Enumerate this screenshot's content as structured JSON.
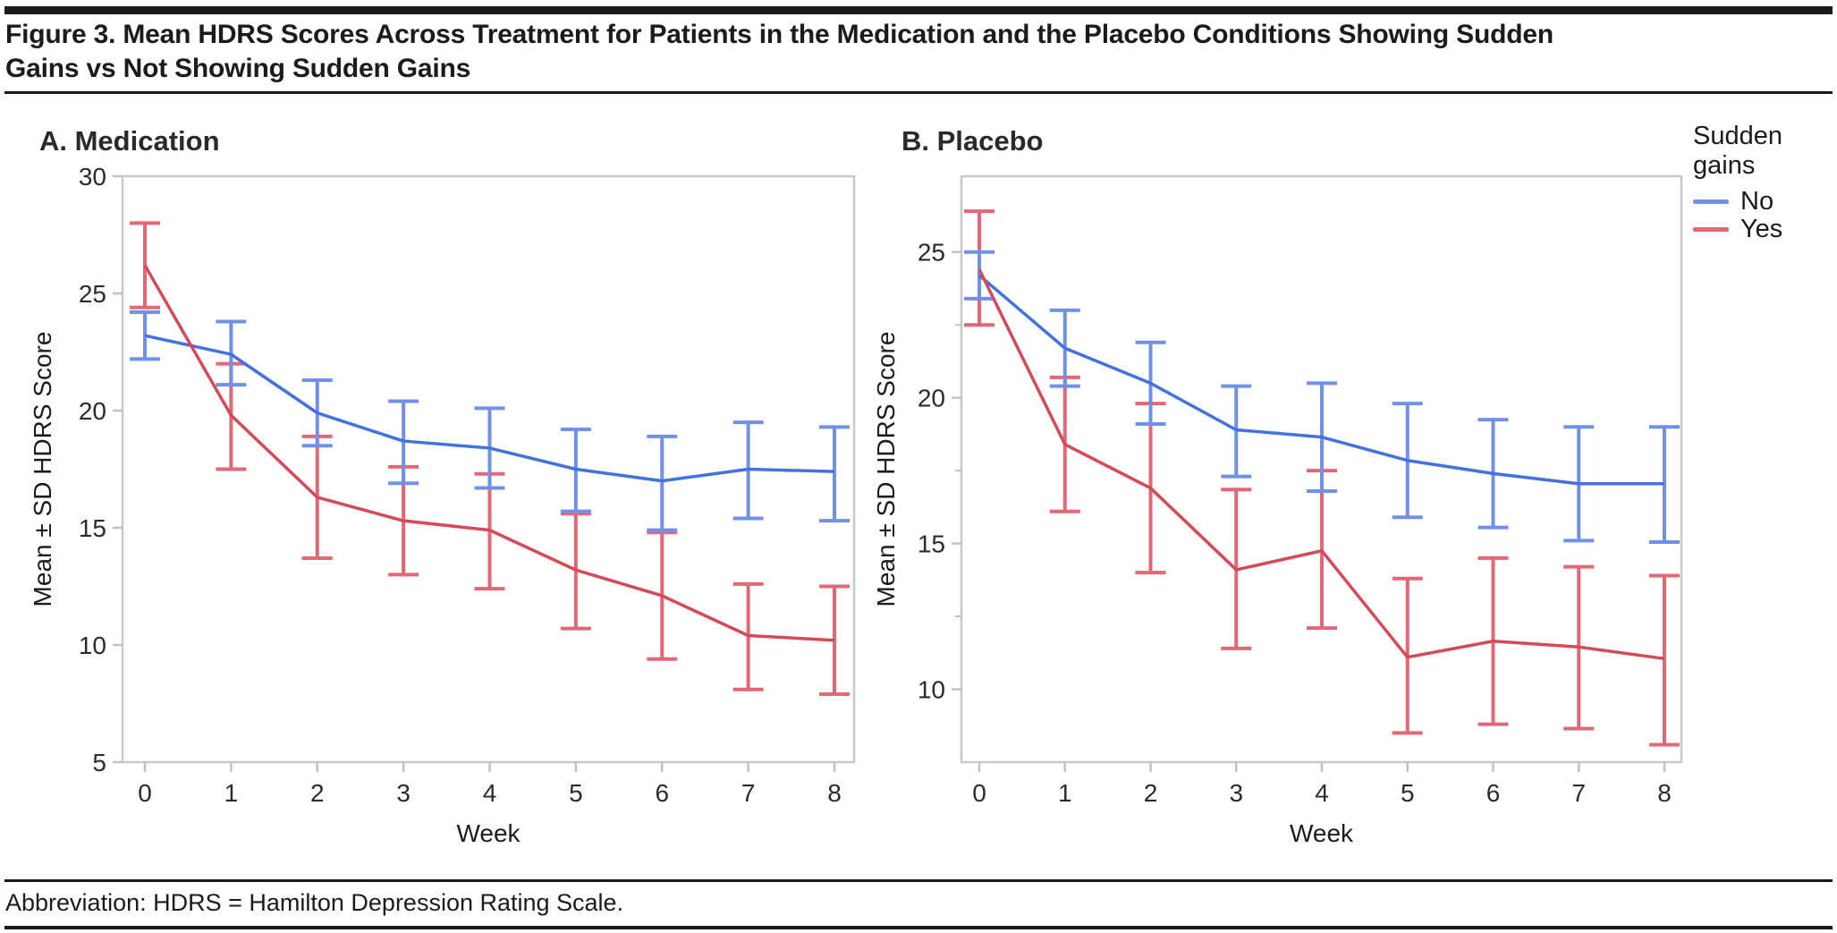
{
  "header": {
    "title_line1": "Figure 3. Mean HDRS Scores Across Treatment for Patients in the Medication and the Placebo Conditions Showing Sudden",
    "title_line2": "Gains vs Not Showing Sudden Gains"
  },
  "legend": {
    "title": "Sudden gains",
    "entries": [
      {
        "label": "No",
        "swatch_color": "#7191E8"
      },
      {
        "label": "Yes",
        "swatch_color": "#E36774"
      }
    ]
  },
  "footnote": "Abbreviation: HDRS = Hamilton Depression Rating Scale.",
  "colors": {
    "axis_frame": "#C9C9C9",
    "tick_mark": "#C2C2C2",
    "text": "#1c1c1c",
    "tick_text": "#2b2b2b",
    "blue_line": "#4371DE",
    "blue_error": "#7191E8",
    "red_line": "#D44A59",
    "red_error": "#E36774"
  },
  "chart_data": [
    {
      "type": "line",
      "panel_label": "A. Medication",
      "xlabel": "Week",
      "ylabel": "Mean ± SD HDRS Score",
      "x": [
        0,
        1,
        2,
        3,
        4,
        5,
        6,
        7,
        8
      ],
      "ylim": [
        5,
        30
      ],
      "yticks": [
        5,
        10,
        15,
        20,
        25,
        30
      ],
      "yticks_minor": [],
      "grid": false,
      "legend_position": "outside-top-right",
      "series": [
        {
          "name": "No",
          "color": "#4371DE",
          "error_color": "#7191E8",
          "mean": [
            23.2,
            22.4,
            19.9,
            18.7,
            18.4,
            17.5,
            17.0,
            17.5,
            17.4
          ],
          "lo": [
            22.2,
            21.1,
            18.5,
            16.9,
            16.7,
            15.7,
            14.9,
            15.4,
            15.3
          ],
          "hi": [
            24.2,
            23.8,
            21.3,
            20.4,
            20.1,
            19.2,
            18.9,
            19.5,
            19.3
          ]
        },
        {
          "name": "Yes",
          "color": "#D44A59",
          "error_color": "#E36774",
          "mean": [
            26.2,
            19.8,
            16.3,
            15.3,
            14.9,
            13.2,
            12.1,
            10.4,
            10.2
          ],
          "lo": [
            24.4,
            17.5,
            13.7,
            13.0,
            12.4,
            10.7,
            9.4,
            8.1,
            7.9
          ],
          "hi": [
            28.0,
            22.0,
            18.9,
            17.6,
            17.3,
            15.6,
            14.8,
            12.6,
            12.5
          ]
        }
      ]
    },
    {
      "type": "line",
      "panel_label": "B. Placebo",
      "xlabel": "Week",
      "ylabel": "Mean ± SD HDRS Score",
      "x": [
        0,
        1,
        2,
        3,
        4,
        5,
        6,
        7,
        8
      ],
      "ylim": [
        7.5,
        27.6
      ],
      "yticks": [
        10,
        15,
        20,
        25
      ],
      "yticks_minor": [
        12.5,
        17.5,
        22.5
      ],
      "grid": false,
      "legend_position": "outside-top-right",
      "series": [
        {
          "name": "No",
          "color": "#4371DE",
          "error_color": "#7191E8",
          "mean": [
            24.2,
            21.7,
            20.5,
            18.9,
            18.65,
            17.85,
            17.4,
            17.05,
            17.05
          ],
          "lo": [
            23.4,
            20.4,
            19.1,
            17.3,
            16.8,
            15.9,
            15.55,
            15.1,
            15.05
          ],
          "hi": [
            25.0,
            23.0,
            21.9,
            20.4,
            20.5,
            19.8,
            19.25,
            19.0,
            19.0
          ]
        },
        {
          "name": "Yes",
          "color": "#D44A59",
          "error_color": "#E36774",
          "mean": [
            24.4,
            18.4,
            16.9,
            14.1,
            14.75,
            11.1,
            11.65,
            11.45,
            11.05
          ],
          "lo": [
            22.5,
            16.1,
            14.0,
            11.4,
            12.1,
            8.5,
            8.8,
            8.65,
            8.1
          ],
          "hi": [
            26.4,
            20.7,
            19.8,
            16.85,
            17.5,
            13.8,
            14.5,
            14.2,
            13.9
          ]
        }
      ]
    }
  ]
}
